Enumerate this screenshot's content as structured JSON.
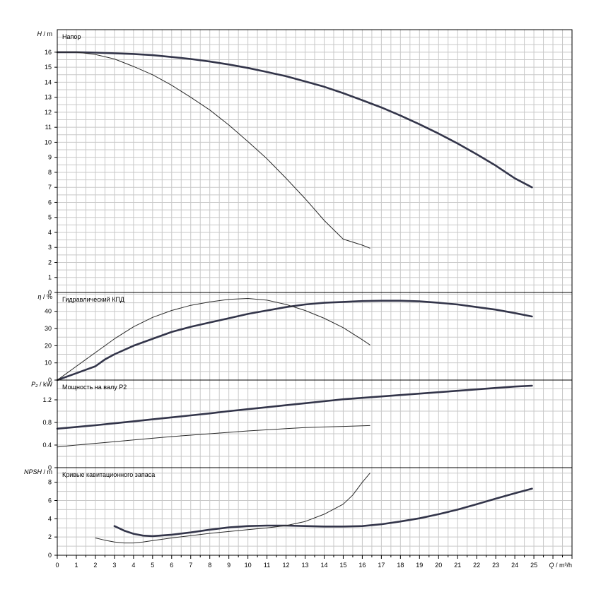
{
  "chart_data": {
    "type": "line",
    "x_axis": {
      "label": "Q / m³/h",
      "range": [
        0,
        27
      ],
      "ticks": [
        0,
        1,
        2,
        3,
        4,
        5,
        6,
        7,
        8,
        9,
        10,
        11,
        12,
        13,
        14,
        15,
        16,
        17,
        18,
        19,
        20,
        21,
        22,
        23,
        24,
        25
      ]
    },
    "panels": [
      {
        "id": "head",
        "title": "Напор",
        "ylabel": "H / m",
        "ylim": [
          0,
          17.5
        ],
        "ticks": [
          0,
          1,
          2,
          3,
          4,
          5,
          6,
          7,
          8,
          9,
          10,
          11,
          12,
          13,
          14,
          15,
          16
        ],
        "series": [
          {
            "style": "thick",
            "x": [
              0,
              1,
              2,
              3,
              4,
              5,
              6,
              7,
              8,
              9,
              10,
              11,
              12,
              13,
              14,
              15,
              16,
              17,
              18,
              19,
              20,
              21,
              22,
              23,
              24,
              24.9
            ],
            "y": [
              16.0,
              16.0,
              15.97,
              15.93,
              15.88,
              15.8,
              15.68,
              15.55,
              15.38,
              15.18,
              14.95,
              14.68,
              14.4,
              14.05,
              13.7,
              13.27,
              12.8,
              12.32,
              11.78,
              11.2,
              10.58,
              9.92,
              9.2,
              8.45,
              7.6,
              7.0
            ]
          },
          {
            "style": "thin",
            "x": [
              0,
              1,
              2,
              3,
              4,
              5,
              6,
              7,
              8,
              9,
              10,
              11,
              12,
              13,
              14,
              15,
              16,
              16.4
            ],
            "y": [
              16.0,
              16.0,
              15.85,
              15.55,
              15.05,
              14.5,
              13.8,
              13.0,
              12.15,
              11.15,
              10.05,
              8.9,
              7.6,
              6.25,
              4.8,
              3.55,
              3.15,
              2.95
            ]
          }
        ]
      },
      {
        "id": "efficiency",
        "title": "Гидравлический КПД",
        "ylabel": "η / %",
        "ylim": [
          0,
          51
        ],
        "ticks": [
          0,
          10,
          20,
          30,
          40
        ],
        "series": [
          {
            "style": "thick",
            "x": [
              0,
              1,
              2,
              2.5,
              3,
              4,
              5,
              6,
              7,
              8,
              9,
              10,
              11,
              12,
              13,
              14,
              15,
              16,
              17,
              18,
              19,
              20,
              21,
              22,
              23,
              24,
              24.9
            ],
            "y": [
              0,
              4,
              8,
              12,
              15,
              20,
              24,
              28,
              31,
              33.5,
              36,
              38.5,
              40.5,
              42.5,
              44,
              45,
              45.5,
              46,
              46.2,
              46.2,
              45.8,
              45,
              44,
              42.5,
              41,
              39,
              37
            ]
          },
          {
            "style": "thin",
            "x": [
              0,
              0.5,
              1,
              1.5,
              2,
              3,
              4,
              5,
              6,
              7,
              8,
              9,
              10,
              11,
              12,
              13,
              14,
              15,
              16,
              16.4
            ],
            "y": [
              0,
              4,
              8,
              12,
              16,
              24,
              31,
              36.5,
              40.5,
              43.5,
              45.5,
              47,
              47.5,
              46.5,
              44,
              40.5,
              36,
              30.5,
              23.5,
              20.5
            ]
          }
        ]
      },
      {
        "id": "power",
        "title": "Мощность на валу P2",
        "ylabel": "P₂ / kW",
        "ylim": [
          0,
          1.55
        ],
        "ticks": [
          0,
          0.4,
          0.8,
          1.2
        ],
        "series": [
          {
            "style": "thick",
            "x": [
              0,
              1,
              2,
              3,
              4,
              5,
              6,
              7,
              8,
              9,
              10,
              11,
              12,
              13,
              14,
              15,
              16,
              17,
              18,
              19,
              20,
              21,
              22,
              23,
              24,
              24.9
            ],
            "y": [
              0.69,
              0.72,
              0.75,
              0.785,
              0.82,
              0.855,
              0.89,
              0.925,
              0.96,
              1.0,
              1.035,
              1.07,
              1.105,
              1.14,
              1.175,
              1.21,
              1.235,
              1.26,
              1.285,
              1.31,
              1.335,
              1.36,
              1.385,
              1.41,
              1.435,
              1.45
            ]
          },
          {
            "style": "thin",
            "x": [
              0,
              1,
              2,
              3,
              4,
              5,
              6,
              7,
              8,
              9,
              10,
              11,
              12,
              13,
              14,
              15,
              16,
              16.4
            ],
            "y": [
              0.365,
              0.4,
              0.43,
              0.46,
              0.49,
              0.52,
              0.55,
              0.575,
              0.6,
              0.625,
              0.65,
              0.67,
              0.69,
              0.71,
              0.72,
              0.73,
              0.74,
              0.745
            ]
          }
        ]
      },
      {
        "id": "npsh",
        "title": "Кривые кавитационного запаса",
        "ylabel": "NPSH / m",
        "ylim": [
          0,
          9.6
        ],
        "ticks": [
          0,
          2,
          4,
          6,
          8
        ],
        "series": [
          {
            "style": "thick",
            "x": [
              3,
              3.5,
              4,
              4.5,
              5,
              6,
              7,
              8,
              9,
              10,
              11,
              12,
              13,
              14,
              15,
              16,
              17,
              18,
              19,
              20,
              21,
              22,
              23,
              24,
              24.9
            ],
            "y": [
              3.2,
              2.7,
              2.35,
              2.15,
              2.1,
              2.25,
              2.5,
              2.8,
              3.05,
              3.2,
              3.25,
              3.25,
              3.2,
              3.15,
              3.15,
              3.2,
              3.4,
              3.7,
              4.05,
              4.5,
              5.0,
              5.6,
              6.2,
              6.8,
              7.3
            ]
          },
          {
            "style": "thin",
            "x": [
              2,
              2.5,
              3,
              3.5,
              4,
              4.5,
              5,
              6,
              7,
              8,
              9,
              10,
              11,
              12,
              13,
              14,
              15,
              15.5,
              16,
              16.4
            ],
            "y": [
              1.9,
              1.65,
              1.45,
              1.35,
              1.35,
              1.45,
              1.6,
              1.9,
              2.15,
              2.4,
              2.6,
              2.8,
              3.0,
              3.25,
              3.7,
              4.5,
              5.6,
              6.6,
              8.0,
              9.0
            ]
          }
        ]
      }
    ]
  }
}
